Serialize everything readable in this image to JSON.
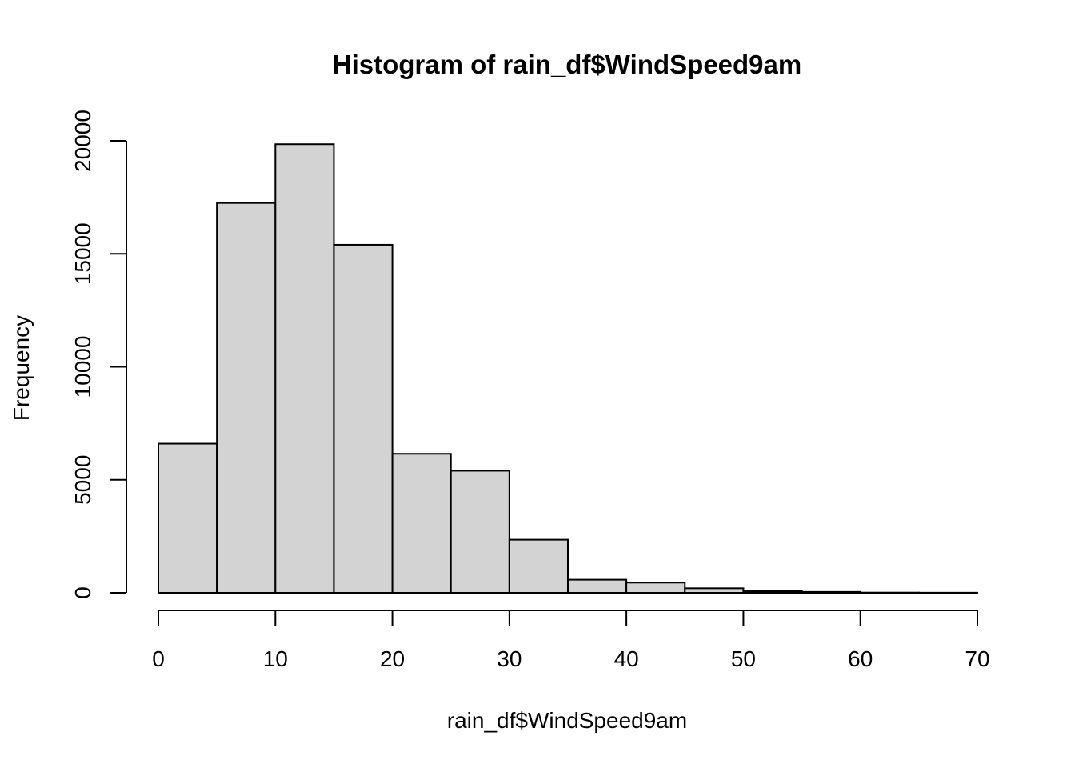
{
  "chart_data": {
    "type": "bar",
    "title": "Histogram of rain_df$WindSpeed9am",
    "xlabel": "rain_df$WindSpeed9am",
    "ylabel": "Frequency",
    "bins": [
      {
        "from": 0,
        "to": 5,
        "count": 6600
      },
      {
        "from": 5,
        "to": 10,
        "count": 17250
      },
      {
        "from": 10,
        "to": 15,
        "count": 19850
      },
      {
        "from": 15,
        "to": 20,
        "count": 15400
      },
      {
        "from": 20,
        "to": 25,
        "count": 6150
      },
      {
        "from": 25,
        "to": 30,
        "count": 5400
      },
      {
        "from": 30,
        "to": 35,
        "count": 2350
      },
      {
        "from": 35,
        "to": 40,
        "count": 580
      },
      {
        "from": 40,
        "to": 45,
        "count": 450
      },
      {
        "from": 45,
        "to": 50,
        "count": 200
      },
      {
        "from": 50,
        "to": 55,
        "count": 70
      },
      {
        "from": 55,
        "to": 60,
        "count": 40
      },
      {
        "from": 60,
        "to": 65,
        "count": 10
      },
      {
        "from": 65,
        "to": 70,
        "count": 5
      }
    ],
    "x_ticks": [
      "0",
      "10",
      "20",
      "30",
      "40",
      "50",
      "60",
      "70"
    ],
    "y_ticks": [
      "0",
      "5000",
      "10000",
      "15000",
      "20000"
    ],
    "xlim": [
      0,
      70
    ],
    "ylim": [
      0,
      20000
    ],
    "grid": false,
    "bar_color": "#d3d3d3",
    "edge_color": "#000000"
  }
}
